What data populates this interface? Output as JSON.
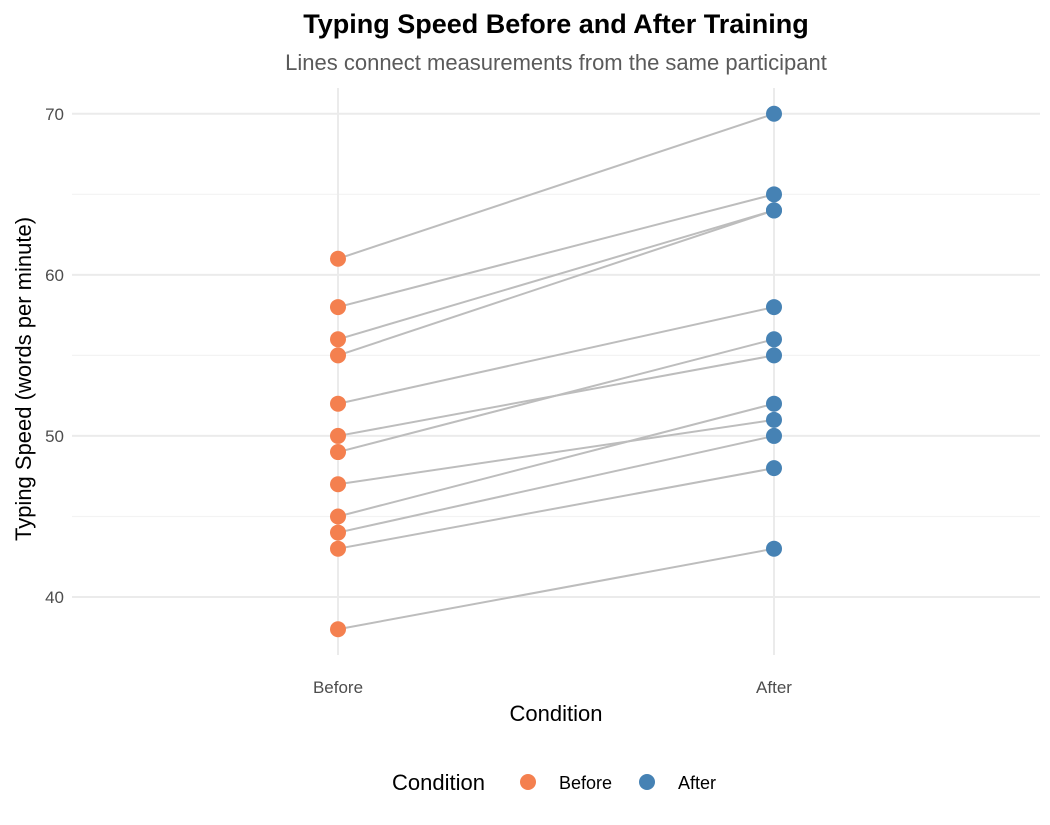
{
  "chart_data": {
    "type": "scatter",
    "title": "Typing Speed Before and After Training",
    "subtitle": "Lines connect measurements from the same participant",
    "xlabel": "Condition",
    "ylabel": "Typing Speed (words per minute)",
    "categories": [
      "Before",
      "After"
    ],
    "ylim": [
      36.4,
      71.6
    ],
    "yticks": [
      40,
      50,
      60,
      70
    ],
    "yminor": [
      45,
      55,
      65
    ],
    "grid": true,
    "legend": {
      "title": "Condition",
      "position": "bottom",
      "entries": [
        {
          "label": "Before",
          "color": "#f4804f"
        },
        {
          "label": "After",
          "color": "#4682b4"
        }
      ]
    },
    "series": [
      {
        "name": "Before",
        "color": "#f4804f",
        "values": [
          61,
          58,
          56,
          55,
          52,
          50,
          49,
          47,
          45,
          44,
          43,
          38
        ]
      },
      {
        "name": "After",
        "color": "#4682b4",
        "values": [
          70,
          65,
          64,
          64,
          58,
          55,
          56,
          51,
          52,
          50,
          48,
          43
        ]
      }
    ],
    "line_color": "#bdbdbd"
  }
}
